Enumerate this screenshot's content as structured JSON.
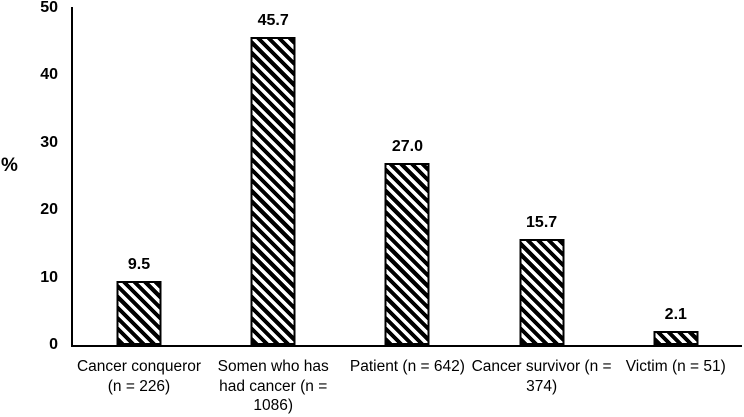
{
  "chart_data": {
    "type": "bar",
    "title": "",
    "xlabel": "",
    "ylabel": "%",
    "ylim": [
      0,
      50
    ],
    "yticks": [
      0,
      10,
      20,
      30,
      40,
      50
    ],
    "ytick_labels": [
      "0",
      "10",
      "20",
      "30",
      "40",
      "50"
    ],
    "grid": false,
    "legend": false,
    "categories": [
      "Cancer conqueror (n = 226)",
      "Somen who has had cancer (n = 1086)",
      "Patient (n = 642)",
      "Cancer survivor (n = 374)",
      "Victim (n = 51)"
    ],
    "values": [
      9.5,
      45.7,
      27.0,
      15.7,
      2.1
    ],
    "value_labels": [
      "9.5",
      "45.7",
      "27.0",
      "15.7",
      "2.1"
    ],
    "category_display": [
      "Cancer conqueror\n(n = 226)",
      "Somen who has\nhad cancer (n =\n1086)",
      "Patient (n = 642)",
      "Cancer survivor (n =\n374)",
      "Victim (n = 51)"
    ],
    "bar_style": {
      "fill": "#ffffff",
      "hatch": "diagonal-backslash-stripes",
      "hatch_color": "#000000",
      "border_color": "#000000"
    }
  },
  "colors": {
    "background": "#ffffff",
    "axis": "#000000",
    "text": "#000000"
  }
}
